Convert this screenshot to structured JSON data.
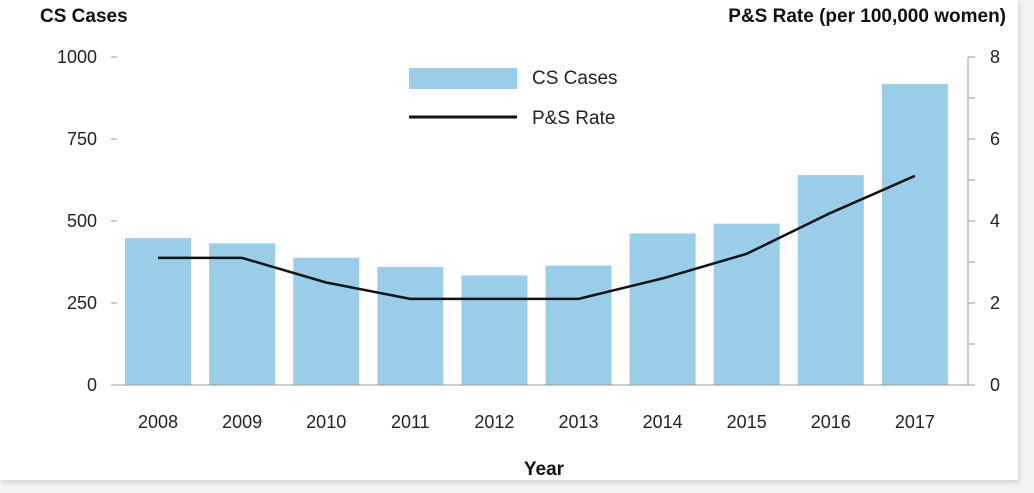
{
  "chart_data": {
    "type": "bar",
    "categories": [
      "2008",
      "2009",
      "2010",
      "2011",
      "2012",
      "2013",
      "2014",
      "2015",
      "2016",
      "2017"
    ],
    "series": [
      {
        "name": "CS Cases",
        "type": "bar",
        "axis": "left",
        "values": [
          448,
          432,
          388,
          360,
          334,
          364,
          462,
          492,
          640,
          918
        ]
      },
      {
        "name": "P&S Rate",
        "type": "line",
        "axis": "right",
        "values": [
          3.1,
          3.1,
          2.5,
          2.1,
          2.1,
          2.1,
          2.6,
          3.2,
          4.2,
          5.1
        ]
      }
    ],
    "title": "",
    "xlabel": "Year",
    "ylabel": "CS Cases",
    "ylabel_right": "P&S Rate (per 100,000 women)",
    "ylim": [
      0,
      1000
    ],
    "ylim_right": [
      0,
      8
    ],
    "yticks": [
      0,
      250,
      500,
      750,
      1000
    ],
    "yticks_right": [
      0,
      2,
      4,
      6,
      8
    ],
    "legend": [
      {
        "label": "CS Cases",
        "kind": "bar"
      },
      {
        "label": "P&S Rate",
        "kind": "line"
      }
    ],
    "legend_position": "top-center",
    "colors": {
      "bar": "#99cde9",
      "line": "#111111",
      "axis": "#999999"
    }
  }
}
